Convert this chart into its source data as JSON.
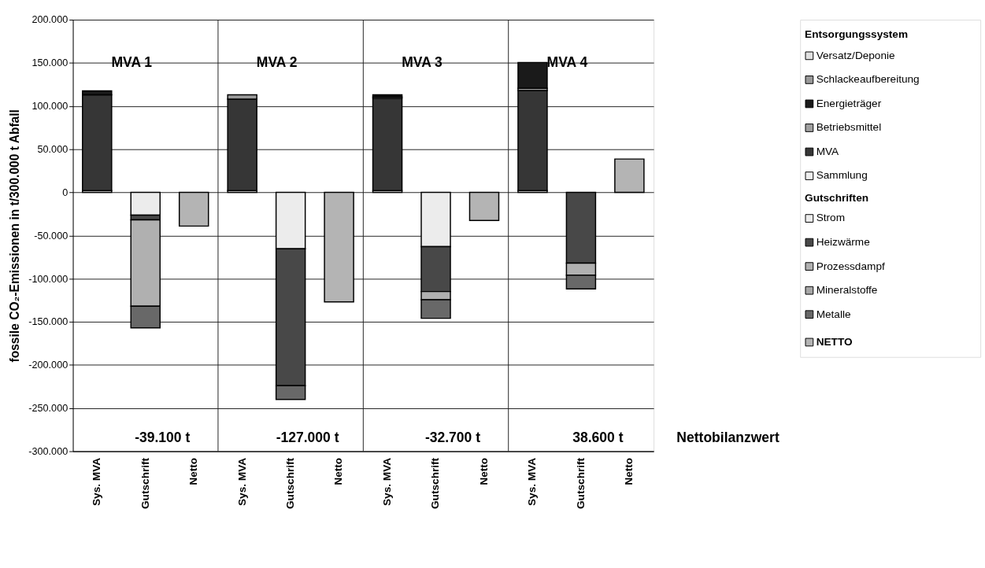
{
  "chart_data": {
    "type": "bar",
    "stacked": true,
    "ylabel": "fossile CO₂-Emissionen  in t/300.000 t Abfall",
    "legend_title": "Entsorgungssystem",
    "categories": [
      "Sys. MVA",
      "Gutschrift",
      "Netto",
      "Sys. MVA",
      "Gutschrift",
      "Netto",
      "Sys. MVA",
      "Gutschrift",
      "Netto",
      "Sys. MVA",
      "Gutschrift",
      "Netto"
    ],
    "series": [
      {
        "name": "Sammlung",
        "color": "#eeeeee",
        "values": [
          2000,
          null,
          null,
          2000,
          null,
          null,
          2000,
          null,
          null,
          2000,
          null,
          null
        ]
      },
      {
        "name": "MVA",
        "color": "#363636",
        "values": [
          111000,
          null,
          null,
          106000,
          null,
          null,
          107000,
          null,
          null,
          116000,
          null,
          null
        ]
      },
      {
        "name": "Betriebsmittel",
        "color": "#a0a0a0",
        "values": [
          null,
          null,
          null,
          null,
          null,
          null,
          1500,
          null,
          null,
          2500,
          null,
          null
        ]
      },
      {
        "name": "Energieträger",
        "color": "#1a1a1a",
        "values": [
          4500,
          null,
          null,
          null,
          null,
          null,
          2500,
          null,
          null,
          30000,
          null,
          null
        ]
      },
      {
        "name": "Schlackeaufbereitung",
        "color": "#999999",
        "values": [
          null,
          null,
          null,
          5000,
          null,
          null,
          null,
          null,
          null,
          null,
          null,
          null
        ]
      },
      {
        "name": "Versatz/Deponie",
        "color": "#e0e0e0",
        "values": [
          null,
          null,
          null,
          null,
          null,
          null,
          null,
          null,
          null,
          null,
          null,
          null
        ]
      },
      {
        "name": "Strom",
        "color": "#ececec",
        "values": [
          null,
          -26500,
          null,
          null,
          -65500,
          null,
          null,
          -63000,
          null,
          null,
          null,
          null
        ]
      },
      {
        "name": "Heizwärme",
        "color": "#484848",
        "values": [
          null,
          -5500,
          null,
          null,
          -158500,
          null,
          null,
          -52000,
          null,
          null,
          -82000,
          null
        ]
      },
      {
        "name": "Prozessdampf",
        "color": "#b0b0b0",
        "values": [
          null,
          -100000,
          null,
          null,
          null,
          null,
          null,
          -9500,
          null,
          null,
          -14000,
          null
        ]
      },
      {
        "name": "Mineralstoffe",
        "color": "#a8a8a8",
        "values": [
          null,
          null,
          null,
          null,
          null,
          null,
          null,
          null,
          null,
          null,
          null,
          null
        ]
      },
      {
        "name": "Metalle",
        "color": "#686868",
        "values": [
          null,
          -25000,
          null,
          null,
          -16000,
          null,
          null,
          -21500,
          null,
          null,
          -16000,
          null
        ]
      },
      {
        "name": "NETTO",
        "color": "#b4b4b4",
        "values": [
          null,
          null,
          -39100,
          null,
          null,
          -127000,
          null,
          null,
          -32700,
          null,
          null,
          38600
        ]
      }
    ],
    "ylim": [
      -300000,
      200000
    ],
    "yticks": [
      {
        "value": 200000,
        "label": "200.000"
      },
      {
        "value": 150000,
        "label": "150.000"
      },
      {
        "value": 100000,
        "label": "100.000"
      },
      {
        "value": 50000,
        "label": "50.000"
      },
      0,
      {
        "value": -50000,
        "label": "-50.000"
      },
      {
        "value": -100000,
        "label": "-100.000"
      },
      {
        "value": -150000,
        "label": "-150.000"
      },
      {
        "value": -200000,
        "label": "-200.000"
      },
      {
        "value": -250000,
        "label": "-250.000"
      },
      {
        "value": -300000,
        "label": "-300.000"
      }
    ],
    "grid": true,
    "legend": "right",
    "annotations": [
      "MVA 1",
      "MVA 2",
      "MVA 3",
      "MVA 4",
      "-39.100 t",
      "-127.000 t",
      "-32.700 t",
      "38.600 t",
      "Nettobilanzwert",
      "Gutschriften"
    ]
  }
}
